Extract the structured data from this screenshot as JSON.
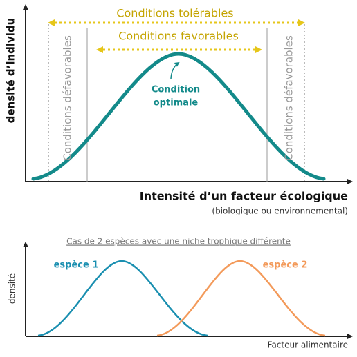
{
  "top": {
    "y_label": "densité d’individu",
    "x_label": "Intensité d’un facteur écologique",
    "x_sublabel": "(biologique ou environnemental)",
    "tolerable": "Conditions tolérables",
    "favorable": "Conditions favorables",
    "optimal_line1": "Condition",
    "optimal_line2": "optimale",
    "unfavorable_left": "Conditions défavorables",
    "unfavorable_right": "Conditions défavorables"
  },
  "bottom": {
    "title": "Cas de 2 espèces avec une niche trophique différente",
    "y_label": "densité",
    "x_label": "Facteur alimentaire",
    "species_1": "espèce 1",
    "species_2": "espèce 2"
  }
}
